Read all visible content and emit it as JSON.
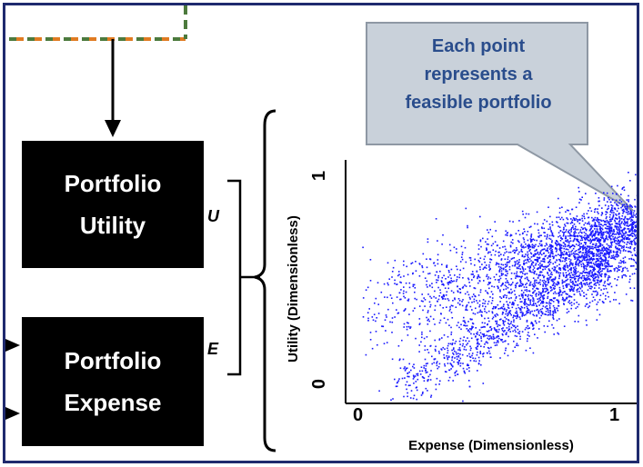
{
  "callout": {
    "lines": [
      "Each point",
      "represents a",
      "feasible portfolio"
    ]
  },
  "boxes": {
    "utility": {
      "line1": "Portfolio",
      "line2": "Utility"
    },
    "expense": {
      "line1": "Portfolio",
      "line2": "Expense"
    }
  },
  "labels": {
    "u": "U",
    "e": "E"
  },
  "colors": {
    "frame": "#1f2a6e",
    "box": "#000000",
    "point": "#1a1aff",
    "callout_fill": "#c9d1da",
    "callout_text": "#2a4d8c",
    "dashed_orange": "#e07b22",
    "dashed_green": "#4c7a3d"
  },
  "chart_data": {
    "type": "scatter",
    "xlabel": "Expense (Dimensionless)",
    "ylabel": "Utility (Dimensionless)",
    "xlim": [
      -0.05,
      1.1
    ],
    "ylim": [
      -0.02,
      1.0
    ],
    "x_ticks": [
      {
        "value": 0,
        "label": "0"
      },
      {
        "value": 1,
        "label": "1"
      }
    ],
    "y_ticks": [
      {
        "value": 0,
        "label": "0"
      },
      {
        "value": 1,
        "label": "1"
      }
    ],
    "series": [
      {
        "color": "#1a1aff",
        "clusters": [
          {
            "x_range": [
              0.0,
              1.15
            ],
            "y_at_x0": 0.36,
            "slope": 0.3,
            "spread": 0.1,
            "count": 1800
          },
          {
            "x_range": [
              0.55,
              1.15
            ],
            "y_at_x0": 0.38,
            "slope": 0.33,
            "spread": 0.06,
            "count": 900
          },
          {
            "x_range": [
              0.12,
              0.98
            ],
            "y_at_x0": -0.05,
            "slope": 0.65,
            "spread": 0.07,
            "count": 1300
          }
        ]
      }
    ]
  }
}
